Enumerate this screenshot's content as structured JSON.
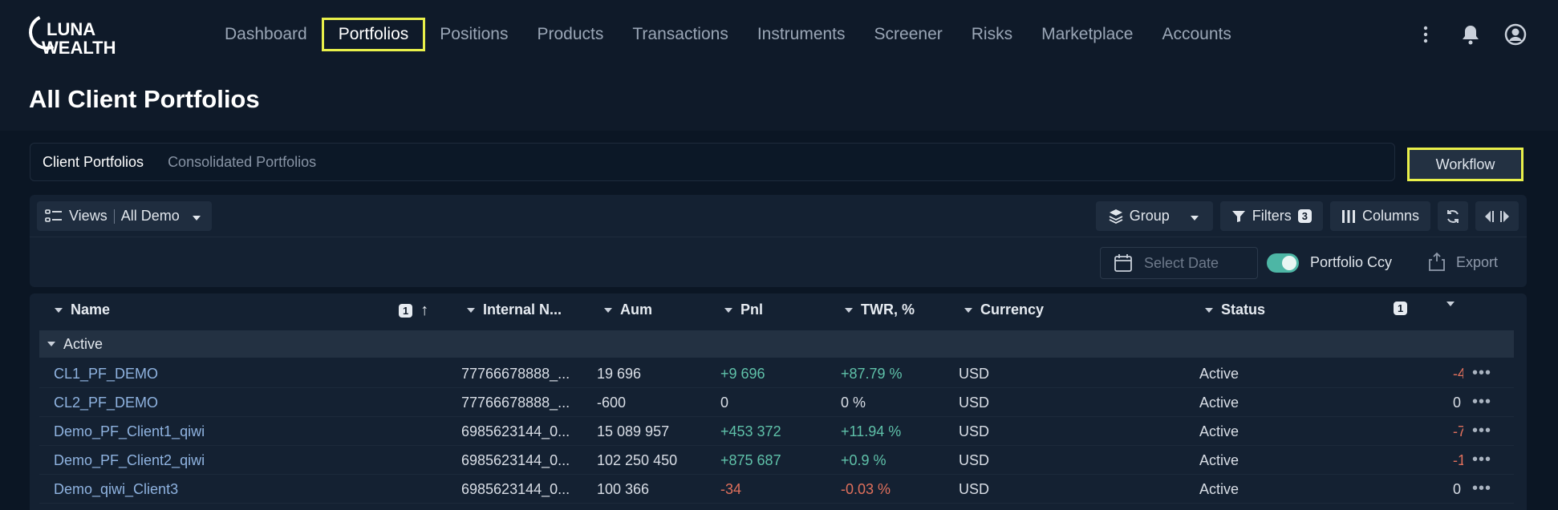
{
  "brand": {
    "line1": "LUNA",
    "line2": "WEALTH"
  },
  "nav": {
    "items": [
      {
        "label": "Dashboard",
        "active": false
      },
      {
        "label": "Portfolios",
        "active": true
      },
      {
        "label": "Positions",
        "active": false
      },
      {
        "label": "Products",
        "active": false
      },
      {
        "label": "Transactions",
        "active": false
      },
      {
        "label": "Instruments",
        "active": false
      },
      {
        "label": "Screener",
        "active": false
      },
      {
        "label": "Risks",
        "active": false
      },
      {
        "label": "Marketplace",
        "active": false
      },
      {
        "label": "Accounts",
        "active": false
      }
    ]
  },
  "page": {
    "title": "All Client Portfolios"
  },
  "tabs": [
    {
      "label": "Client Portfolios",
      "active": true
    },
    {
      "label": "Consolidated Portfolios",
      "active": false
    }
  ],
  "workflow_label": "Workflow",
  "toolbar": {
    "views_label": "Views",
    "views_value": "All Demo",
    "group_label": "Group",
    "filters_label": "Filters",
    "filters_count": "3",
    "columns_label": "Columns"
  },
  "subbar": {
    "date_placeholder": "Select Date",
    "toggle_label": "Portfolio Ccy",
    "toggle_on": true,
    "export_label": "Export"
  },
  "table": {
    "headers": {
      "name": "Name",
      "name_sort_badge": "1",
      "internal": "Internal N...",
      "aum": "Aum",
      "pnl": "Pnl",
      "twr": "TWR, %",
      "currency": "Currency",
      "status": "Status",
      "status_badge": "1"
    },
    "group_label": "Active",
    "rows": [
      {
        "name": "CL1_PF_DEMO",
        "internal": "77766678888_...",
        "aum": "19 696",
        "pnl": "+9 696",
        "twr": "+87.79 %",
        "currency": "USD",
        "status": "Active",
        "extra": "-4",
        "tone": "pos"
      },
      {
        "name": "CL2_PF_DEMO",
        "internal": "77766678888_...",
        "aum": "-600",
        "pnl": "0",
        "twr": "0 %",
        "currency": "USD",
        "status": "Active",
        "extra": "0",
        "tone": "neutral"
      },
      {
        "name": "Demo_PF_Client1_qiwi",
        "internal": "6985623144_0...",
        "aum": "15 089 957",
        "pnl": "+453 372",
        "twr": "+11.94 %",
        "currency": "USD",
        "status": "Active",
        "extra": "-7",
        "tone": "pos"
      },
      {
        "name": "Demo_PF_Client2_qiwi",
        "internal": "6985623144_0...",
        "aum": "102 250 450",
        "pnl": "+875 687",
        "twr": "+0.9 %",
        "currency": "USD",
        "status": "Active",
        "extra": "-1",
        "tone": "pos"
      },
      {
        "name": "Demo_qiwi_Client3",
        "internal": "6985623144_0...",
        "aum": "100 366",
        "pnl": "-34",
        "twr": "-0.03 %",
        "currency": "USD",
        "status": "Active",
        "extra": "0",
        "tone": "neg"
      }
    ]
  },
  "colors": {
    "accent_highlight": "#e9f04a",
    "positive": "#5fc1a9",
    "negative": "#e0705c",
    "link": "#8fb3e0"
  }
}
